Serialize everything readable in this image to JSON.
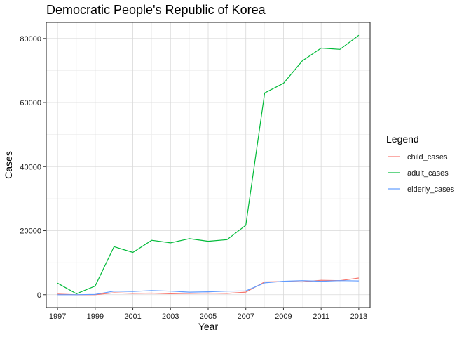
{
  "chart_data": {
    "type": "line",
    "title": "Democratic People's Republic of Korea",
    "xlabel": "Year",
    "ylabel": "Cases",
    "xlim": [
      1996.4,
      2013.6
    ],
    "ylim": [
      -4000,
      85000
    ],
    "x_ticks": [
      1997,
      1999,
      2001,
      2003,
      2005,
      2007,
      2009,
      2011,
      2013
    ],
    "y_ticks": [
      0,
      20000,
      40000,
      60000,
      80000
    ],
    "grid": true,
    "legend": {
      "title": "Legend",
      "position": "right"
    },
    "x": [
      1997,
      1998,
      1999,
      2000,
      2001,
      2002,
      2003,
      2004,
      2005,
      2006,
      2007,
      2008,
      2009,
      2010,
      2011,
      2012,
      2013
    ],
    "series": [
      {
        "name": "child_cases",
        "color": "#F8766D",
        "values": [
          200,
          0,
          0,
          600,
          400,
          500,
          300,
          400,
          500,
          400,
          800,
          4000,
          4100,
          4000,
          4500,
          4400,
          5200
        ]
      },
      {
        "name": "adult_cases",
        "color": "#00BA38",
        "values": [
          3600,
          300,
          2700,
          15000,
          13200,
          17000,
          16200,
          17500,
          16700,
          17200,
          21700,
          63000,
          66000,
          73000,
          77000,
          76600,
          81000
        ]
      },
      {
        "name": "elderly_cases",
        "color": "#619CFF",
        "values": [
          0,
          0,
          100,
          1100,
          1000,
          1300,
          1100,
          800,
          900,
          1100,
          1200,
          3700,
          4200,
          4400,
          4200,
          4400,
          4300
        ]
      }
    ]
  }
}
